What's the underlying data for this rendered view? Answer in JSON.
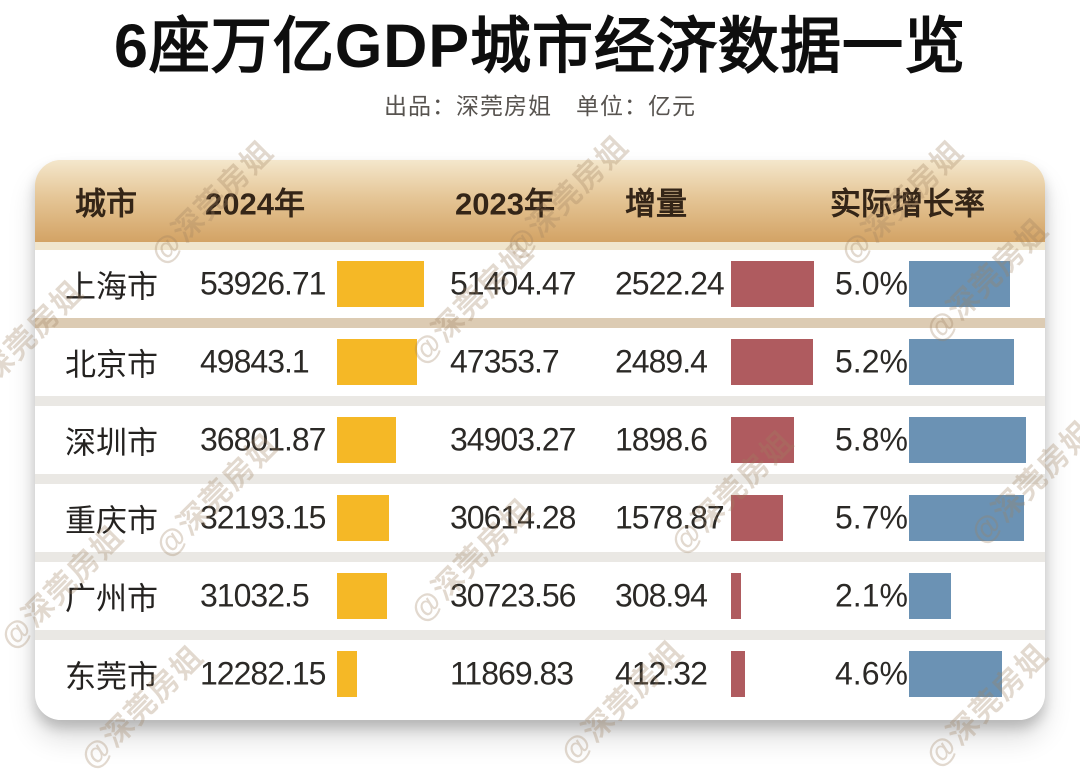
{
  "title": "6座万亿GDP城市经济数据一览",
  "subtitle": "出品：深莞房姐　单位：亿元",
  "watermark": {
    "text": "@深莞房姐"
  },
  "colors": {
    "bar_2024": "#F5B826",
    "bar_delta": "#AF5B5F",
    "bar_rate": "#6B92B4",
    "header_gradient_top": "#F4E7CC",
    "header_gradient_bottom": "#D3A365"
  },
  "table": {
    "headers": {
      "city": "城市",
      "y2024": "2024年",
      "y2023": "2023年",
      "delta": "增量",
      "rate": "实际增长率"
    },
    "rows": [
      {
        "city": "上海市",
        "gdp2024": "53926.71",
        "gdp2023": "51404.47",
        "delta": "2522.24",
        "rate": "5.0%"
      },
      {
        "city": "北京市",
        "gdp2024": "49843.1",
        "gdp2023": "47353.7",
        "delta": "2489.4",
        "rate": "5.2%"
      },
      {
        "city": "深圳市",
        "gdp2024": "36801.87",
        "gdp2023": "34903.27",
        "delta": "1898.6",
        "rate": "5.8%"
      },
      {
        "city": "重庆市",
        "gdp2024": "32193.15",
        "gdp2023": "30614.28",
        "delta": "1578.87",
        "rate": "5.7%"
      },
      {
        "city": "广州市",
        "gdp2024": "31032.5",
        "gdp2023": "30723.56",
        "delta": "308.94",
        "rate": "2.1%"
      },
      {
        "city": "东莞市",
        "gdp2024": "12282.15",
        "gdp2023": "11869.83",
        "delta": "412.32",
        "rate": "4.6%"
      }
    ]
  },
  "chart_data": {
    "type": "table",
    "title": "6座万亿GDP城市经济数据一览",
    "subtitle": "出品：深莞房姐 单位：亿元",
    "unit": "亿元",
    "columns": [
      "城市",
      "2024年",
      "2023年",
      "增量",
      "实际增长率"
    ],
    "categories": [
      "上海市",
      "北京市",
      "深圳市",
      "重庆市",
      "广州市",
      "东莞市"
    ],
    "series": [
      {
        "name": "2024年GDP",
        "values": [
          53926.71,
          49843.1,
          36801.87,
          32193.15,
          31032.5,
          12282.15
        ],
        "bar_color": "#F5B826"
      },
      {
        "name": "2023年GDP",
        "values": [
          51404.47,
          47353.7,
          34903.27,
          30614.28,
          30723.56,
          11869.83
        ],
        "bar_color": null
      },
      {
        "name": "增量",
        "values": [
          2522.24,
          2489.4,
          1898.6,
          1578.87,
          308.94,
          412.32
        ],
        "bar_color": "#AF5B5F"
      },
      {
        "name": "实际增长率(%)",
        "values": [
          5.0,
          5.2,
          5.8,
          5.7,
          2.1,
          4.6
        ],
        "bar_color": "#6B92B4"
      }
    ],
    "layout_hints": {
      "bars_inline_with_values": true,
      "bar_width_proportional_to_value": true
    }
  }
}
